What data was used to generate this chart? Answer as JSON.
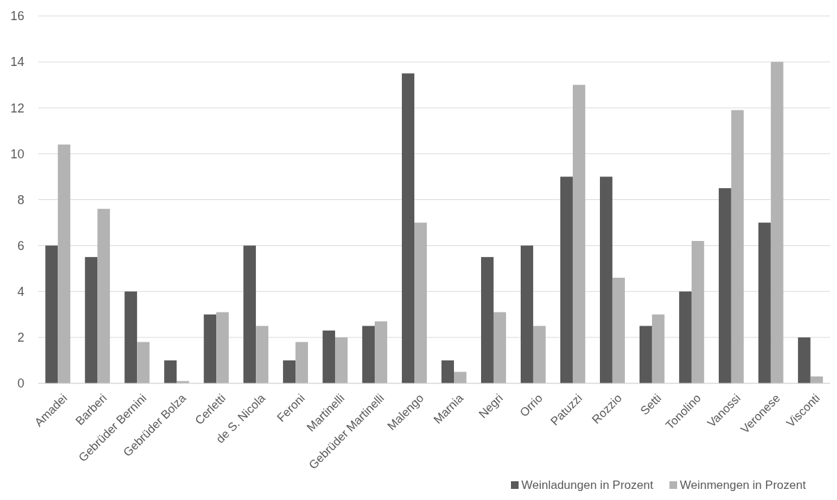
{
  "chart_data": {
    "type": "bar",
    "categories": [
      "Amadei",
      "Barberi",
      "Gebrüder Bernini",
      "Gebrüder Bolza",
      "Cerletti",
      "de S. Nicola",
      "Feroni",
      "Martinelli",
      "Gebrüder Martinelli",
      "Malengo",
      "Marnia",
      "Negri",
      "Orrio",
      "Patuzzi",
      "Rozzio",
      "Setti",
      "Tonolino",
      "Vanossi",
      "Veronese",
      "Visconti"
    ],
    "series": [
      {
        "name": "Weinladungen in Prozent",
        "color": "#595959",
        "values": [
          6,
          5.5,
          4,
          1,
          3,
          6,
          1,
          2.3,
          2.5,
          13.5,
          1,
          5.5,
          6,
          9,
          9,
          2.5,
          4,
          8.5,
          7,
          2
        ]
      },
      {
        "name": "Weinmengen in Prozent",
        "color": "#b3b3b3",
        "values": [
          10.4,
          7.6,
          1.8,
          0.1,
          3.1,
          2.5,
          1.8,
          2,
          2.7,
          7,
          0.5,
          3.1,
          2.5,
          13,
          4.6,
          3,
          6.2,
          11.9,
          14,
          0.3
        ]
      }
    ],
    "ylim": [
      0,
      16
    ],
    "yticks": [
      0,
      2,
      4,
      6,
      8,
      10,
      12,
      14,
      16
    ],
    "grid": "y",
    "legend": "bottom right"
  }
}
